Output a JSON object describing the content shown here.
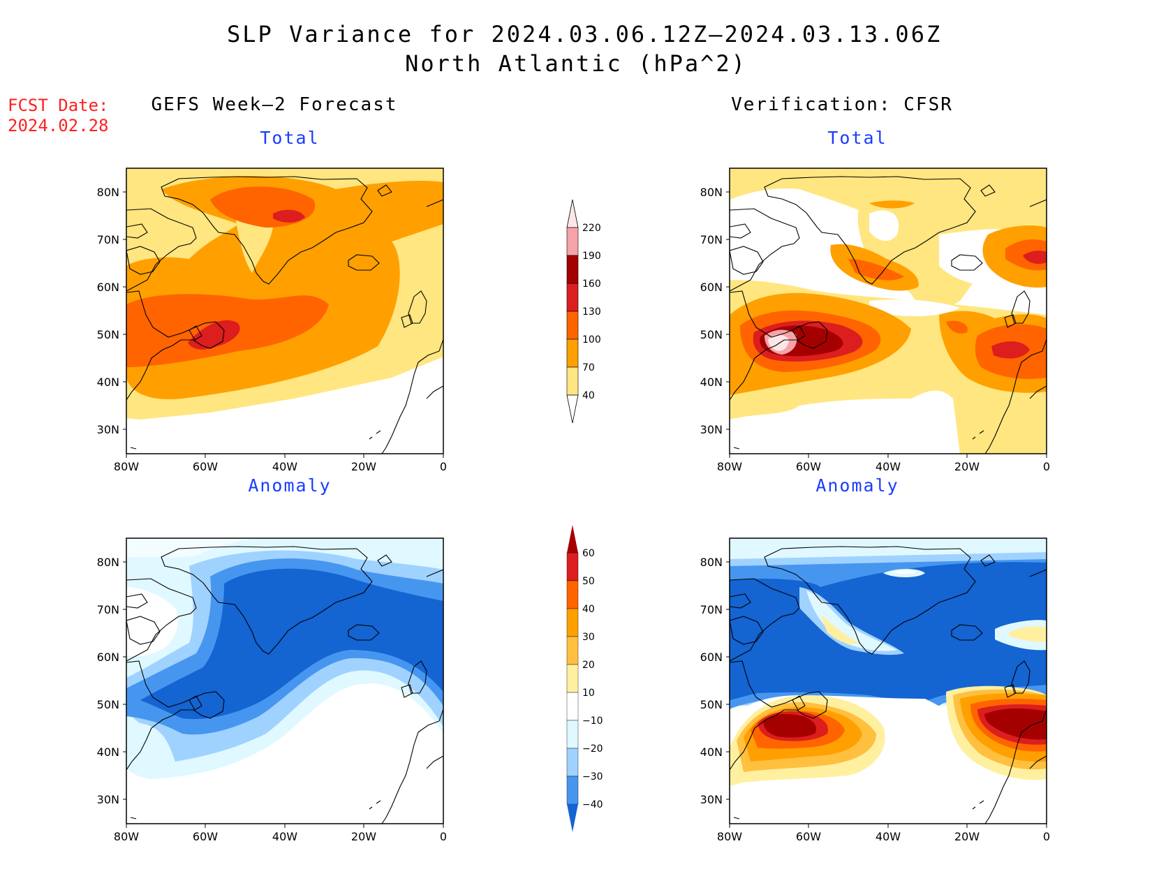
{
  "title": {
    "line1": "SLP Variance for 2024.03.06.12Z–2024.03.13.06Z",
    "line2": "North Atlantic (hPa^2)"
  },
  "fcst": {
    "label": "FCST Date:",
    "date": "2024.02.28"
  },
  "columns": {
    "left": "GEFS Week–2 Forecast",
    "right": "Verification: CFSR"
  },
  "panels": [
    {
      "subtitle": "Total"
    },
    {
      "subtitle": "Total"
    },
    {
      "subtitle": "Anomaly"
    },
    {
      "subtitle": "Anomaly"
    }
  ],
  "axes": {
    "lat_labels": [
      "80N",
      "70N",
      "60N",
      "50N",
      "40N",
      "30N"
    ],
    "lon_labels": [
      "80W",
      "60W",
      "40W",
      "20W",
      "0"
    ]
  },
  "colorbar_total": {
    "levels": [
      "220",
      "190",
      "160",
      "130",
      "100",
      "70",
      "40"
    ],
    "colors": [
      "#ffe6e6",
      "#f4a3a8",
      "#a50000",
      "#dc1e1e",
      "#ff6400",
      "#ffa000",
      "#ffe680"
    ]
  },
  "colorbar_anom": {
    "levels": [
      "60",
      "50",
      "40",
      "30",
      "20",
      "10",
      "−10",
      "−20",
      "−30",
      "−40"
    ],
    "colors": [
      "#a50000",
      "#dc1e1e",
      "#ff6400",
      "#ffa000",
      "#ffc040",
      "#fff0a0",
      "#ffffff",
      "#e0f8ff",
      "#a0d2ff",
      "#4696f0",
      "#1464d2"
    ]
  },
  "palette": {
    "yellow": "#ffe680",
    "orange": "#ffa000",
    "dkorange": "#ff6400",
    "red": "#dc1e1e",
    "maroon": "#a50000",
    "pink": "#f4a3a8",
    "ltpink": "#ffe6e6",
    "cyan": "#e0f8ff",
    "ltblue": "#a0d2ff",
    "midblue": "#4696f0",
    "blue": "#1464d2",
    "pyellow": "#fff0a0",
    "gold": "#ffc040"
  }
}
